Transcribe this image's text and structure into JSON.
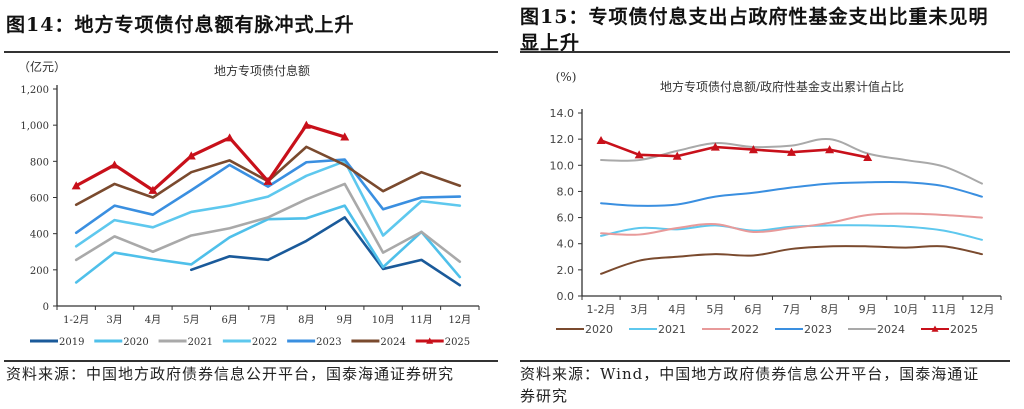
{
  "figures": [
    {
      "fig_title": "图14：地方专项债付息额有脉冲式上升",
      "source": "资料来源：中国地方政府债券信息公开平台，国泰海通证券研究"
    },
    {
      "fig_title_line1": "图15：专项债付息支出占政府性基金支出比重未见明",
      "fig_title_line2": "显上升",
      "source_line1": "资料来源：Wind，中国地方政府债券信息公开平台，国泰海通证",
      "source_line2": "券研究"
    }
  ],
  "chart_data": [
    {
      "type": "line",
      "title": "地方专项债付息额",
      "ylabel": "（亿元）",
      "xlabel": "",
      "ylim": [
        0,
        1200
      ],
      "yticks": [
        0,
        200,
        400,
        600,
        800,
        1000,
        1200
      ],
      "ytick_labels": [
        "0",
        "200",
        "400",
        "600",
        "800",
        "1,000",
        "1,200"
      ],
      "categories": [
        "1-2月",
        "3月",
        "4月",
        "5月",
        "6月",
        "7月",
        "8月",
        "9月",
        "10月",
        "11月",
        "12月"
      ],
      "grid": false,
      "legend": "bottom",
      "series": [
        {
          "name": "2019",
          "color": "#1a5a9a",
          "marker": "none",
          "values": [
            null,
            null,
            null,
            200,
            275,
            255,
            360,
            490,
            205,
            255,
            115
          ]
        },
        {
          "name": "2020",
          "color": "#4fc0ea",
          "marker": "none",
          "values": [
            130,
            295,
            260,
            230,
            380,
            480,
            485,
            555,
            215,
            410,
            160
          ]
        },
        {
          "name": "2021",
          "color": "#a9a9a9",
          "marker": "none",
          "values": [
            255,
            385,
            300,
            390,
            430,
            490,
            590,
            675,
            295,
            410,
            245
          ]
        },
        {
          "name": "2022",
          "color": "#5ec8ee",
          "marker": "none",
          "values": [
            330,
            475,
            435,
            520,
            555,
            605,
            720,
            800,
            390,
            580,
            555
          ]
        },
        {
          "name": "2023",
          "color": "#3a8fe0",
          "marker": "none",
          "values": [
            405,
            555,
            505,
            640,
            780,
            660,
            795,
            810,
            535,
            600,
            605
          ]
        },
        {
          "name": "2024",
          "color": "#7a4a2e",
          "marker": "none",
          "values": [
            560,
            675,
            600,
            740,
            805,
            690,
            880,
            780,
            635,
            740,
            665
          ]
        },
        {
          "name": "2025",
          "color": "#c8101a",
          "marker": "triangle",
          "values": [
            665,
            780,
            640,
            830,
            930,
            690,
            1000,
            935,
            null,
            null,
            null
          ]
        }
      ]
    },
    {
      "type": "line",
      "title": "地方专项债付息额/政府性基金支出累计值占比",
      "ylabel": "(%)",
      "xlabel": "",
      "ylim": [
        0,
        14
      ],
      "yticks": [
        0,
        2,
        4,
        6,
        8,
        10,
        12,
        14
      ],
      "ytick_labels": [
        "0.0",
        "2.0",
        "4.0",
        "6.0",
        "8.0",
        "10.0",
        "12.0",
        "14.0"
      ],
      "categories": [
        "1-2月",
        "3月",
        "4月",
        "5月",
        "6月",
        "7月",
        "8月",
        "9月",
        "10月",
        "11月",
        "12月"
      ],
      "grid": false,
      "legend": "bottom",
      "series": [
        {
          "name": "2020",
          "color": "#7a4a2e",
          "marker": "none",
          "values": [
            1.7,
            2.7,
            3.0,
            3.2,
            3.1,
            3.6,
            3.8,
            3.8,
            3.7,
            3.8,
            3.2
          ]
        },
        {
          "name": "2021",
          "color": "#5ec8ee",
          "marker": "none",
          "values": [
            4.6,
            5.2,
            5.1,
            5.4,
            5.0,
            5.3,
            5.4,
            5.4,
            5.3,
            5.0,
            4.3
          ]
        },
        {
          "name": "2022",
          "color": "#e89a9a",
          "marker": "none",
          "values": [
            4.8,
            4.7,
            5.2,
            5.5,
            4.9,
            5.2,
            5.6,
            6.2,
            6.3,
            6.2,
            6.0
          ]
        },
        {
          "name": "2023",
          "color": "#3a8fe0",
          "marker": "none",
          "values": [
            7.1,
            6.9,
            7.0,
            7.6,
            7.9,
            8.3,
            8.6,
            8.7,
            8.7,
            8.4,
            7.6
          ]
        },
        {
          "name": "2024",
          "color": "#a9a9a9",
          "marker": "none",
          "values": [
            10.4,
            10.4,
            11.1,
            11.7,
            11.4,
            11.5,
            12.0,
            10.9,
            10.4,
            9.9,
            8.6
          ]
        },
        {
          "name": "2025",
          "color": "#c8101a",
          "marker": "triangle",
          "values": [
            11.9,
            10.8,
            10.7,
            11.4,
            11.2,
            11.0,
            11.2,
            10.6,
            null,
            null,
            null
          ]
        }
      ]
    }
  ]
}
